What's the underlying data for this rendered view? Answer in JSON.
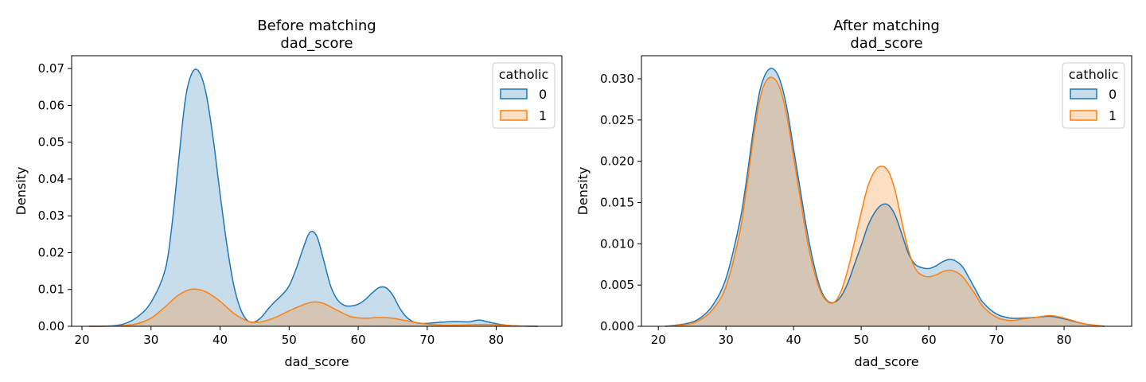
{
  "chart_data": [
    {
      "type": "area",
      "title": "Before matching",
      "subtitle": "dad_score",
      "xlabel": "dad_score",
      "ylabel": "Density",
      "xlim": [
        18.5,
        89.5
      ],
      "ylim": [
        0,
        0.0735
      ],
      "xticks": [
        20,
        30,
        40,
        50,
        60,
        70,
        80
      ],
      "yticks": [
        0.0,
        0.01,
        0.02,
        0.03,
        0.04,
        0.05,
        0.06,
        0.07
      ],
      "ytick_labels": [
        "0.00",
        "0.01",
        "0.02",
        "0.03",
        "0.04",
        "0.05",
        "0.06",
        "0.07"
      ],
      "legend": {
        "title": "catholic",
        "placement": "top-right",
        "entries": [
          "0",
          "1"
        ]
      },
      "series": [
        {
          "name": "0",
          "color": "#1f77b4",
          "x": [
            21,
            24,
            26,
            28,
            30,
            32,
            33,
            34,
            35,
            36,
            37,
            38,
            39,
            40,
            41,
            42,
            43,
            44,
            45,
            46,
            47,
            48,
            49,
            50,
            51,
            52,
            53,
            54,
            55,
            56,
            57,
            58,
            59,
            60,
            61,
            62,
            63,
            64,
            65,
            66,
            67,
            68,
            69,
            70,
            72,
            74,
            76,
            77.5,
            79,
            81,
            83,
            86
          ],
          "y": [
            0.0,
            0.0001,
            0.0006,
            0.0025,
            0.0065,
            0.015,
            0.027,
            0.045,
            0.062,
            0.069,
            0.069,
            0.063,
            0.051,
            0.036,
            0.022,
            0.011,
            0.0045,
            0.0015,
            0.0012,
            0.0025,
            0.0048,
            0.0068,
            0.0086,
            0.011,
            0.0155,
            0.021,
            0.0255,
            0.0245,
            0.018,
            0.011,
            0.0072,
            0.0057,
            0.0055,
            0.006,
            0.0072,
            0.009,
            0.0105,
            0.0105,
            0.0085,
            0.005,
            0.0025,
            0.0012,
            0.0008,
            0.0008,
            0.0011,
            0.0013,
            0.0012,
            0.0017,
            0.0011,
            0.0004,
            0.0001,
            0.0
          ]
        },
        {
          "name": "1",
          "color": "#ff7f0e",
          "x": [
            21,
            24,
            26,
            28,
            30,
            32,
            34,
            36,
            38,
            40,
            42,
            44,
            45,
            46,
            48,
            50,
            52,
            53.5,
            55,
            57,
            59,
            61,
            63,
            65,
            67,
            70,
            73,
            76,
            78,
            80,
            83,
            86
          ],
          "y": [
            0.0,
            5e-05,
            0.0002,
            0.0007,
            0.0022,
            0.0052,
            0.0085,
            0.0101,
            0.0093,
            0.0068,
            0.0035,
            0.0014,
            0.0011,
            0.0012,
            0.0024,
            0.0042,
            0.0058,
            0.0066,
            0.0062,
            0.0043,
            0.0026,
            0.0022,
            0.0024,
            0.0022,
            0.0015,
            0.0006,
            0.0003,
            0.0004,
            0.0005,
            0.0004,
            0.0001,
            0.0
          ]
        }
      ]
    },
    {
      "type": "area",
      "title": "After matching",
      "subtitle": "dad_score",
      "xlabel": "dad_score",
      "ylabel": "Density",
      "xlim": [
        17.5,
        90.0
      ],
      "ylim": [
        0,
        0.0328
      ],
      "xticks": [
        20,
        30,
        40,
        50,
        60,
        70,
        80
      ],
      "yticks": [
        0.0,
        0.005,
        0.01,
        0.015,
        0.02,
        0.025,
        0.03
      ],
      "ytick_labels": [
        "0.000",
        "0.005",
        "0.010",
        "0.015",
        "0.020",
        "0.025",
        "0.030"
      ],
      "legend": {
        "title": "catholic",
        "placement": "top-right",
        "entries": [
          "0",
          "1"
        ]
      },
      "series": [
        {
          "name": "0",
          "color": "#1f77b4",
          "x": [
            21,
            24,
            26,
            28,
            30,
            32,
            33,
            34,
            35,
            36,
            37,
            38,
            39,
            40,
            41,
            42,
            43,
            44,
            45,
            46,
            47,
            48,
            49,
            50,
            51,
            52,
            53,
            54,
            55,
            56,
            57,
            58,
            59,
            60,
            61,
            62,
            63,
            64,
            65,
            66,
            67,
            68,
            70,
            72,
            74,
            76,
            78,
            80,
            83,
            86
          ],
          "y": [
            0.0,
            0.0003,
            0.0009,
            0.0025,
            0.0058,
            0.0125,
            0.0175,
            0.0235,
            0.0285,
            0.0308,
            0.0312,
            0.0298,
            0.0265,
            0.0215,
            0.0165,
            0.0115,
            0.0075,
            0.0045,
            0.0031,
            0.0029,
            0.0036,
            0.0052,
            0.0075,
            0.0098,
            0.0122,
            0.0138,
            0.0147,
            0.0147,
            0.0135,
            0.0112,
            0.0088,
            0.0075,
            0.0071,
            0.007,
            0.0073,
            0.0078,
            0.0081,
            0.0079,
            0.0072,
            0.0058,
            0.0043,
            0.0029,
            0.0015,
            0.001,
            0.001,
            0.0011,
            0.0012,
            0.0009,
            0.0003,
            0.0
          ]
        },
        {
          "name": "1",
          "color": "#ff7f0e",
          "x": [
            21,
            24,
            26,
            28,
            30,
            32,
            33,
            34,
            35,
            36,
            37,
            38,
            39,
            40,
            41,
            42,
            43,
            44,
            45,
            46,
            47,
            48,
            49,
            50,
            51,
            52,
            53,
            54,
            55,
            56,
            57,
            58,
            59,
            60,
            61,
            62,
            63,
            64,
            65,
            66,
            67,
            68,
            70,
            72,
            74,
            76,
            78,
            80,
            83,
            86
          ],
          "y": [
            0.0,
            0.0002,
            0.0007,
            0.002,
            0.0048,
            0.0112,
            0.0165,
            0.0225,
            0.0275,
            0.0298,
            0.0301,
            0.0288,
            0.0255,
            0.0205,
            0.0155,
            0.0105,
            0.0068,
            0.0042,
            0.003,
            0.0029,
            0.0042,
            0.0068,
            0.0102,
            0.0138,
            0.017,
            0.0188,
            0.0194,
            0.0188,
            0.0165,
            0.0127,
            0.0092,
            0.007,
            0.0062,
            0.006,
            0.0062,
            0.0066,
            0.0068,
            0.0066,
            0.006,
            0.0049,
            0.0037,
            0.0024,
            0.0011,
            0.0007,
            0.0009,
            0.0011,
            0.0013,
            0.001,
            0.0003,
            0.0
          ]
        }
      ]
    }
  ]
}
